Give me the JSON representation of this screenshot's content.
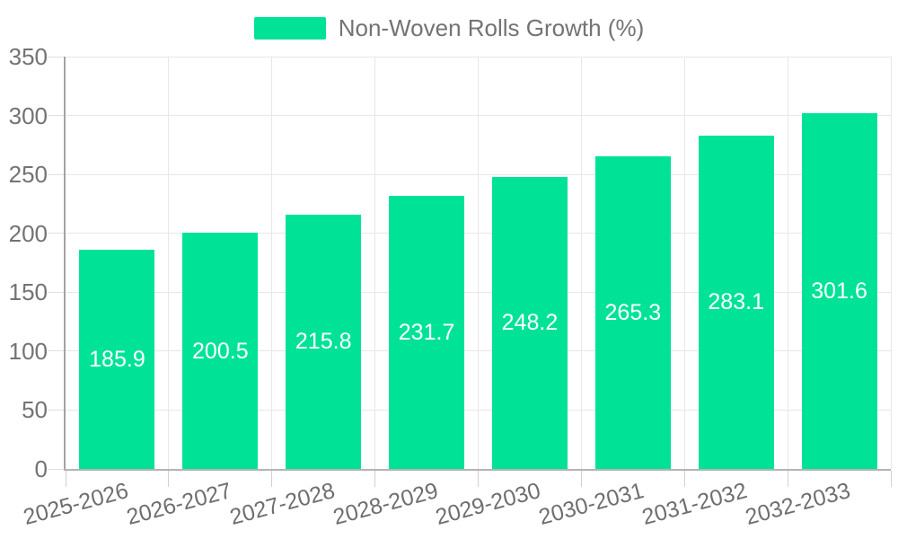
{
  "legend": {
    "label": "Non-Woven Rolls Growth (%)"
  },
  "colors": {
    "bar": "#00E396",
    "grid": "#e7e7e7",
    "axis": "#a3a3a3",
    "baseline": "#b3b3b3",
    "ytick": "#e0e0e0",
    "xtick": "#d0d0d0",
    "axis_label": "#737373",
    "value_label": "#ffffff",
    "background": "#ffffff"
  },
  "chart_data": {
    "type": "bar",
    "title": "",
    "xlabel": "",
    "ylabel": "",
    "categories": [
      "2025-2026",
      "2026-2027",
      "2027-2028",
      "2028-2029",
      "2029-2030",
      "2030-2031",
      "2031-2032",
      "2032-2033"
    ],
    "series": [
      {
        "name": "Non-Woven Rolls Growth (%)",
        "values": [
          185.9,
          200.5,
          215.8,
          231.7,
          248.2,
          265.3,
          283.1,
          301.6
        ]
      }
    ],
    "ylim": [
      0,
      350
    ],
    "yticks": [
      0,
      50,
      100,
      150,
      200,
      250,
      300,
      350
    ],
    "grid": true,
    "legend_position": "top",
    "value_label_position": "inside-center"
  }
}
